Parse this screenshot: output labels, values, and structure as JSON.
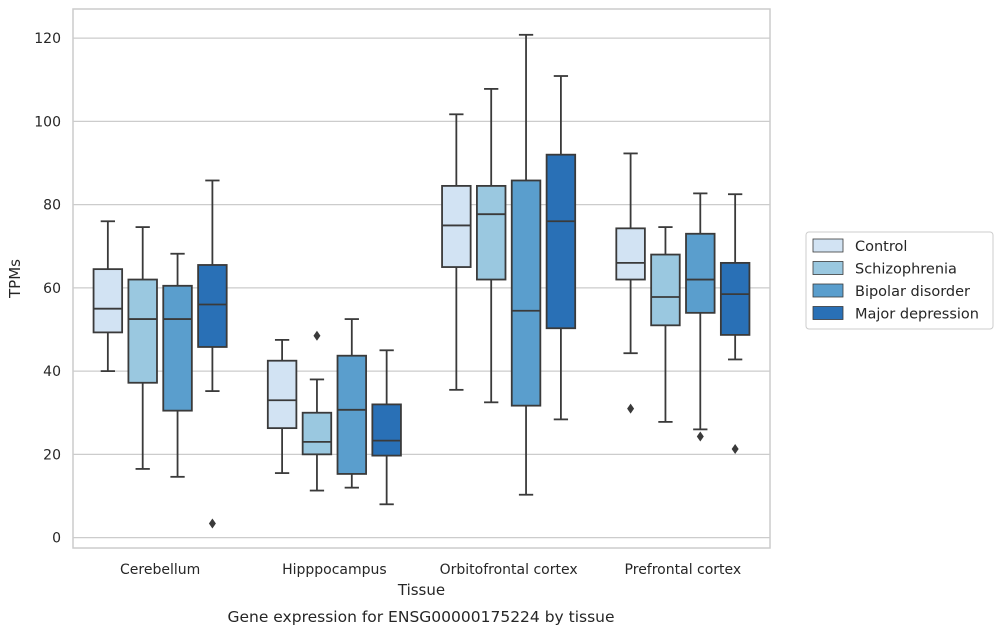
{
  "chart_data": {
    "type": "box",
    "xlabel": "Tissue",
    "ylabel": "TPMs",
    "caption": "Gene expression for ENSG00000175224 by tissue",
    "ylim": [
      -2.5,
      127
    ],
    "yticks": [
      0,
      20,
      40,
      60,
      80,
      100,
      120
    ],
    "grid": "horizontal",
    "legend_position": "right, outside plot",
    "categories": [
      "Cerebellum",
      "Hipppocampus",
      "Orbitofrontal cortex",
      "Prefrontal cortex"
    ],
    "series": [
      {
        "name": "Control",
        "color": "#d2e3f3",
        "boxes": [
          {
            "whislo": 40.0,
            "q1": 49.3,
            "med": 55.0,
            "q3": 64.5,
            "whishi": 76.0,
            "fliers": []
          },
          {
            "whislo": 15.5,
            "q1": 26.3,
            "med": 33.0,
            "q3": 42.5,
            "whishi": 47.5,
            "fliers": []
          },
          {
            "whislo": 35.5,
            "q1": 65.0,
            "med": 75.0,
            "q3": 84.5,
            "whishi": 101.7,
            "fliers": []
          },
          {
            "whislo": 44.3,
            "q1": 62.0,
            "med": 66.0,
            "q3": 74.3,
            "whishi": 92.3,
            "fliers": [
              31.0
            ]
          }
        ]
      },
      {
        "name": "Schizophrenia",
        "color": "#9ac8e0",
        "boxes": [
          {
            "whislo": 16.5,
            "q1": 37.2,
            "med": 52.5,
            "q3": 62.0,
            "whishi": 74.6,
            "fliers": []
          },
          {
            "whislo": 11.3,
            "q1": 20.0,
            "med": 23.0,
            "q3": 30.0,
            "whishi": 38.0,
            "fliers": [
              48.5
            ]
          },
          {
            "whislo": 32.5,
            "q1": 62.0,
            "med": 77.7,
            "q3": 84.5,
            "whishi": 107.8,
            "fliers": []
          },
          {
            "whislo": 27.8,
            "q1": 51.0,
            "med": 57.8,
            "q3": 68.0,
            "whishi": 74.6,
            "fliers": []
          }
        ]
      },
      {
        "name": "Bipolar disorder",
        "color": "#5a9ecd",
        "boxes": [
          {
            "whislo": 14.6,
            "q1": 30.5,
            "med": 52.5,
            "q3": 60.5,
            "whishi": 68.2,
            "fliers": []
          },
          {
            "whislo": 12.0,
            "q1": 15.3,
            "med": 30.7,
            "q3": 43.7,
            "whishi": 52.5,
            "fliers": []
          },
          {
            "whislo": 10.3,
            "q1": 31.7,
            "med": 54.5,
            "q3": 85.8,
            "whishi": 120.8,
            "fliers": []
          },
          {
            "whislo": 26.0,
            "q1": 54.0,
            "med": 62.0,
            "q3": 73.0,
            "whishi": 82.7,
            "fliers": [
              24.3
            ]
          }
        ]
      },
      {
        "name": "Major depression",
        "color": "#2970b6",
        "boxes": [
          {
            "whislo": 35.2,
            "q1": 45.8,
            "med": 56.0,
            "q3": 65.5,
            "whishi": 85.8,
            "fliers": [
              3.4
            ]
          },
          {
            "whislo": 8.0,
            "q1": 19.7,
            "med": 23.3,
            "q3": 32.0,
            "whishi": 45.0,
            "fliers": []
          },
          {
            "whislo": 28.4,
            "q1": 50.3,
            "med": 76.0,
            "q3": 92.0,
            "whishi": 110.9,
            "fliers": []
          },
          {
            "whislo": 42.8,
            "q1": 48.7,
            "med": 58.5,
            "q3": 66.0,
            "whishi": 82.5,
            "fliers": [
              21.3
            ]
          }
        ]
      }
    ]
  },
  "theme": {
    "axis_color": "#cccccc",
    "grid_color": "#cccccc",
    "line_color": "#3a3a3a"
  }
}
